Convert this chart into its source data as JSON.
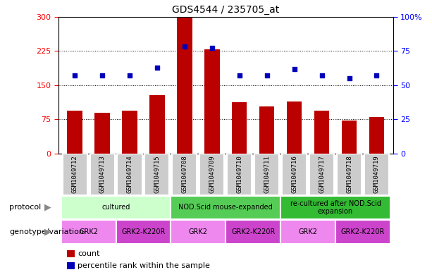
{
  "title": "GDS4544 / 235705_at",
  "samples": [
    "GSM1049712",
    "GSM1049713",
    "GSM1049714",
    "GSM1049715",
    "GSM1049708",
    "GSM1049709",
    "GSM1049710",
    "GSM1049711",
    "GSM1049716",
    "GSM1049717",
    "GSM1049718",
    "GSM1049719"
  ],
  "counts": [
    95,
    90,
    95,
    128,
    298,
    228,
    112,
    103,
    115,
    95,
    73,
    80
  ],
  "percentiles": [
    57,
    57,
    57,
    63,
    78,
    77,
    57,
    57,
    62,
    57,
    55,
    57
  ],
  "left_ylim": [
    0,
    300
  ],
  "right_ylim": [
    0,
    100
  ],
  "left_yticks": [
    0,
    75,
    150,
    225,
    300
  ],
  "right_yticks": [
    0,
    25,
    50,
    75,
    100
  ],
  "right_yticklabels": [
    "0",
    "25",
    "50",
    "75",
    "100%"
  ],
  "bar_color": "#bb0000",
  "dot_color": "#0000bb",
  "protocol_groups": [
    {
      "label": "cultured",
      "start": 0,
      "end": 3,
      "color": "#ccffcc"
    },
    {
      "label": "NOD.Scid mouse-expanded",
      "start": 4,
      "end": 7,
      "color": "#55cc55"
    },
    {
      "label": "re-cultured after NOD.Scid\nexpansion",
      "start": 8,
      "end": 11,
      "color": "#33bb33"
    }
  ],
  "genotype_groups": [
    {
      "label": "GRK2",
      "start": 0,
      "end": 1,
      "color": "#ee88ee"
    },
    {
      "label": "GRK2-K220R",
      "start": 2,
      "end": 3,
      "color": "#cc44cc"
    },
    {
      "label": "GRK2",
      "start": 4,
      "end": 5,
      "color": "#ee88ee"
    },
    {
      "label": "GRK2-K220R",
      "start": 6,
      "end": 7,
      "color": "#cc44cc"
    },
    {
      "label": "GRK2",
      "start": 8,
      "end": 9,
      "color": "#ee88ee"
    },
    {
      "label": "GRK2-K220R",
      "start": 10,
      "end": 11,
      "color": "#cc44cc"
    }
  ],
  "protocol_label": "protocol",
  "genotype_label": "genotype/variation",
  "legend_count": "count",
  "legend_percentile": "percentile rank within the sample",
  "bg_color": "#ffffff",
  "sample_bg": "#cccccc"
}
